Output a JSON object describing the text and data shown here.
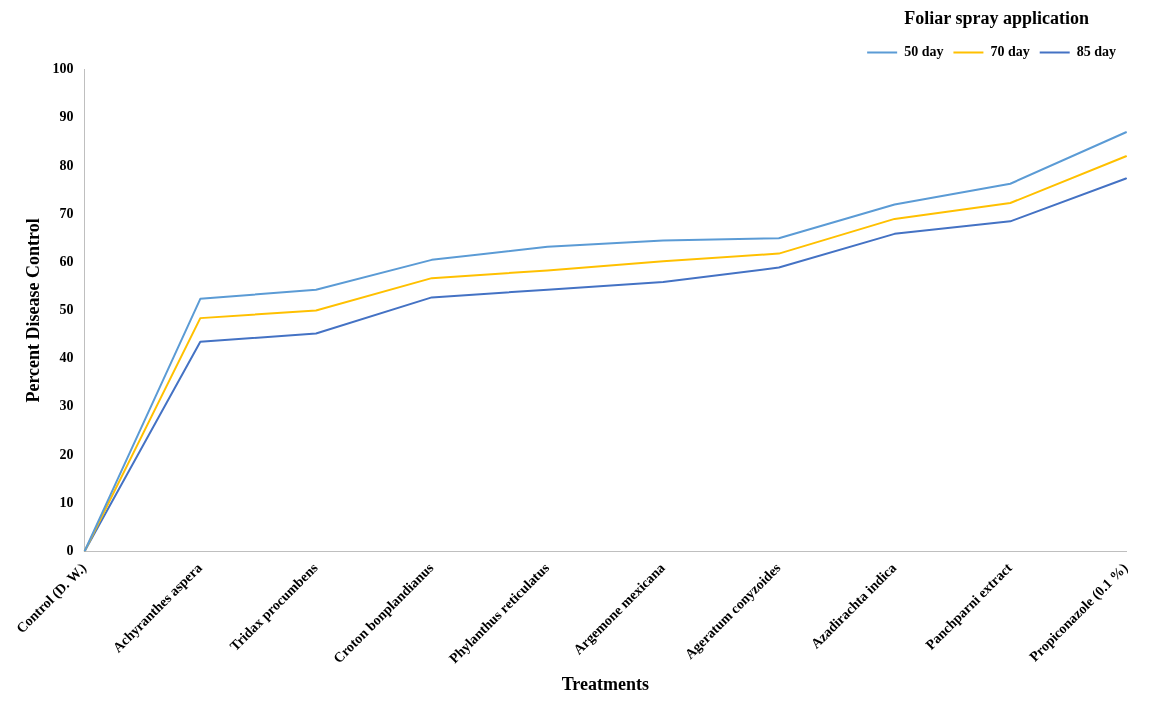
{
  "chart_data": {
    "type": "line",
    "xlabel": "Treatments",
    "ylabel": "Percent Disease Control",
    "legend_title": "Foliar spray application",
    "legend": "top right",
    "grid": false,
    "marker": "none",
    "line_style": "solid",
    "categories": [
      "Control (D. W.)",
      "Achyranthes aspera",
      "Tridax procumbens",
      "Croton bonplandianus",
      "Phylanthus reticulatus",
      "Argemone mexicana",
      "Ageratum conyzoides",
      "Azadirachta indica",
      "Panchparni extract",
      "Propiconazole (0.1 %)"
    ],
    "ylim": [
      0,
      100
    ],
    "yticks": [
      0,
      10,
      20,
      30,
      40,
      50,
      60,
      70,
      80,
      90,
      100
    ],
    "series": [
      {
        "name": "50 day",
        "color": "#5b9bd5",
        "values": [
          0,
          52.4,
          54.3,
          60.5,
          63.2,
          64.5,
          65,
          72,
          76.3,
          87
        ]
      },
      {
        "name": "70 day",
        "color": "#ffc000",
        "values": [
          0,
          48.4,
          50,
          56.7,
          58.3,
          60.2,
          61.8,
          69,
          72.3,
          82
        ]
      },
      {
        "name": "85 day",
        "color": "#4472c4",
        "values": [
          0,
          43.5,
          45.2,
          52.7,
          54.3,
          55.9,
          58.9,
          65.9,
          68.5,
          77.4
        ]
      }
    ]
  }
}
